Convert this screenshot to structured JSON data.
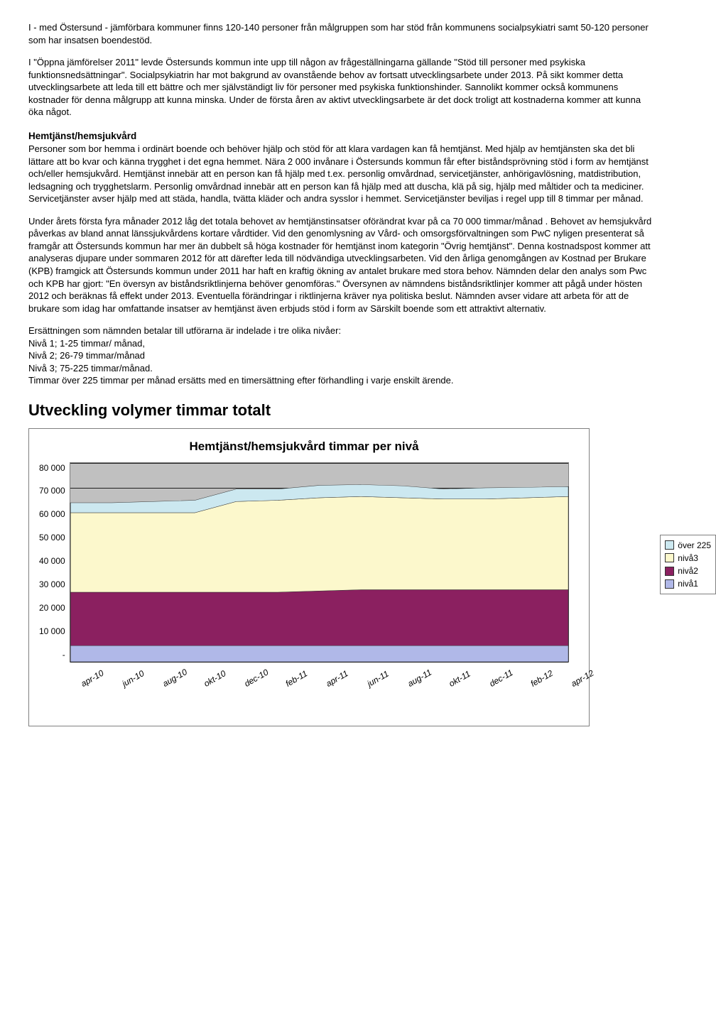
{
  "paragraphs": {
    "p1": "I - med Östersund - jämförbara kommuner finns 120-140 personer från målgruppen som har stöd från kommunens socialpsykiatri samt 50-120  personer som har insatsen boendestöd.",
    "p2": "I \"Öppna jämförelser 2011\" levde Östersunds kommun inte upp till någon av frågeställningarna gällande \"Stöd till personer med psykiska funktionsnedsättningar\". Socialpsykiatrin har mot bakgrund av ovanstående behov av fortsatt utvecklingsarbete under 2013. På sikt kommer detta utvecklingsarbete att leda till ett bättre och mer självständigt liv för personer med psykiska funktionshinder. Sannolikt kommer också kommunens kostnader för denna målgrupp att kunna minska. Under de första åren av aktivt utvecklingsarbete är det dock troligt att kostnaderna kommer att kunna öka något.",
    "h1": "Hemtjänst/hemsjukvård",
    "p3": "Personer som bor hemma i ordinärt boende och behöver hjälp och stöd för att klara vardagen kan få hemtjänst. Med hjälp av hemtjänsten ska det bli lättare att bo kvar och känna trygghet i det egna hemmet. Nära 2 000 invånare i Östersunds kommun får efter biståndsprövning stöd i form av hemtjänst och/eller hemsjukvård. Hemtjänst innebär att en person kan få hjälp med t.ex. personlig omvårdnad, servicetjänster, anhörigavlösning, matdistribution, ledsagning och trygghetslarm. Personlig omvårdnad innebär att en person kan få hjälp med att duscha, klä på sig, hjälp med måltider och ta mediciner. Servicetjänster avser hjälp med att städa, handla, tvätta kläder och andra sysslor i hemmet. Servicetjänster beviljas i regel upp till 8 timmar per månad.",
    "p4": "Under årets första fyra månader 2012 låg det totala behovet av hemtjänstinsatser oförändrat kvar på ca 70 000 timmar/månad . Behovet av hemsjukvård påverkas av bland annat länssjukvårdens kortare vårdtider. Vid den genomlysning av Vård- och omsorgsförvaltningen som PwC nyligen presenterat så framgår att Östersunds kommun har mer än dubbelt så höga kostnader för hemtjänst inom kategorin \"Övrig hemtjänst\". Denna kostnadspost kommer att analyseras djupare under sommaren 2012 för att därefter leda till nödvändiga utvecklingsarbeten. Vid den årliga genomgången av Kostnad per Brukare (KPB) framgick att Östersunds kommun under 2011 har haft en kraftig ökning av antalet brukare med stora behov. Nämnden delar den analys som Pwc och KPB har gjort: \"En översyn av biståndsriktlinjerna behöver genomföras.\" Översynen av nämndens biståndsriktlinjer kommer att pågå under hösten 2012 och beräknas få effekt under 2013. Eventuella förändringar i riktlinjerna kräver nya politiska beslut. Nämnden avser vidare att arbeta för att de brukare som idag har omfattande insatser av hemtjänst även erbjuds stöd i form av Särskilt boende som ett attraktivt alternativ.",
    "p5a": "Ersättningen som nämnden betalar till utförarna är indelade i tre olika nivåer:",
    "p5b": "Nivå 1; 1-25 timmar/ månad,",
    "p5c": "Nivå 2; 26-79 timmar/månad",
    "p5d": "Nivå 3; 75-225 timmar/månad.",
    "p5e": "Timmar över 225 timmar per månad ersätts med en timersättning efter förhandling i varje enskilt ärende.",
    "h2": "Utveckling volymer timmar totalt"
  },
  "chart": {
    "title": "Hemtjänst/hemsjukvård timmar per nivå",
    "type": "area-stacked",
    "y": {
      "min": 0,
      "max": 80000,
      "step": 10000,
      "labels": [
        "-",
        "10 000",
        "20 000",
        "30 000",
        "40 000",
        "50 000",
        "60 000",
        "70 000",
        "80 000"
      ]
    },
    "x_labels": [
      "apr-10",
      "jun-10",
      "aug-10",
      "okt-10",
      "dec-10",
      "feb-11",
      "apr-11",
      "jun-11",
      "aug-11",
      "okt-11",
      "dec-11",
      "feb-12",
      "apr-12"
    ],
    "series": [
      {
        "name": "nivå1",
        "color": "#b0b8e8",
        "values": [
          6500,
          6500,
          6500,
          6500,
          6500,
          6500,
          6500,
          6500,
          6500,
          6500,
          6500,
          6500,
          6500
        ]
      },
      {
        "name": "nivå2",
        "color": "#8b2060",
        "values": [
          21500,
          21500,
          21500,
          21500,
          21500,
          21500,
          22000,
          22500,
          22500,
          22500,
          22500,
          22500,
          22500
        ]
      },
      {
        "name": "nivå3",
        "color": "#fcf8cc",
        "values": [
          32000,
          32000,
          32000,
          32000,
          36500,
          37000,
          37500,
          37500,
          37000,
          36500,
          36500,
          37000,
          37500
        ]
      },
      {
        "name": "över 225",
        "color": "#cce8f0",
        "values": [
          4000,
          4000,
          4500,
          5000,
          5000,
          4500,
          5000,
          4800,
          4800,
          4000,
          4500,
          4200,
          4000
        ]
      }
    ],
    "legend_order": [
      "över 225",
      "nivå3",
      "nivå2",
      "nivå1"
    ],
    "plot_bg": "#c0c0c0",
    "grid_color": "#000000"
  }
}
